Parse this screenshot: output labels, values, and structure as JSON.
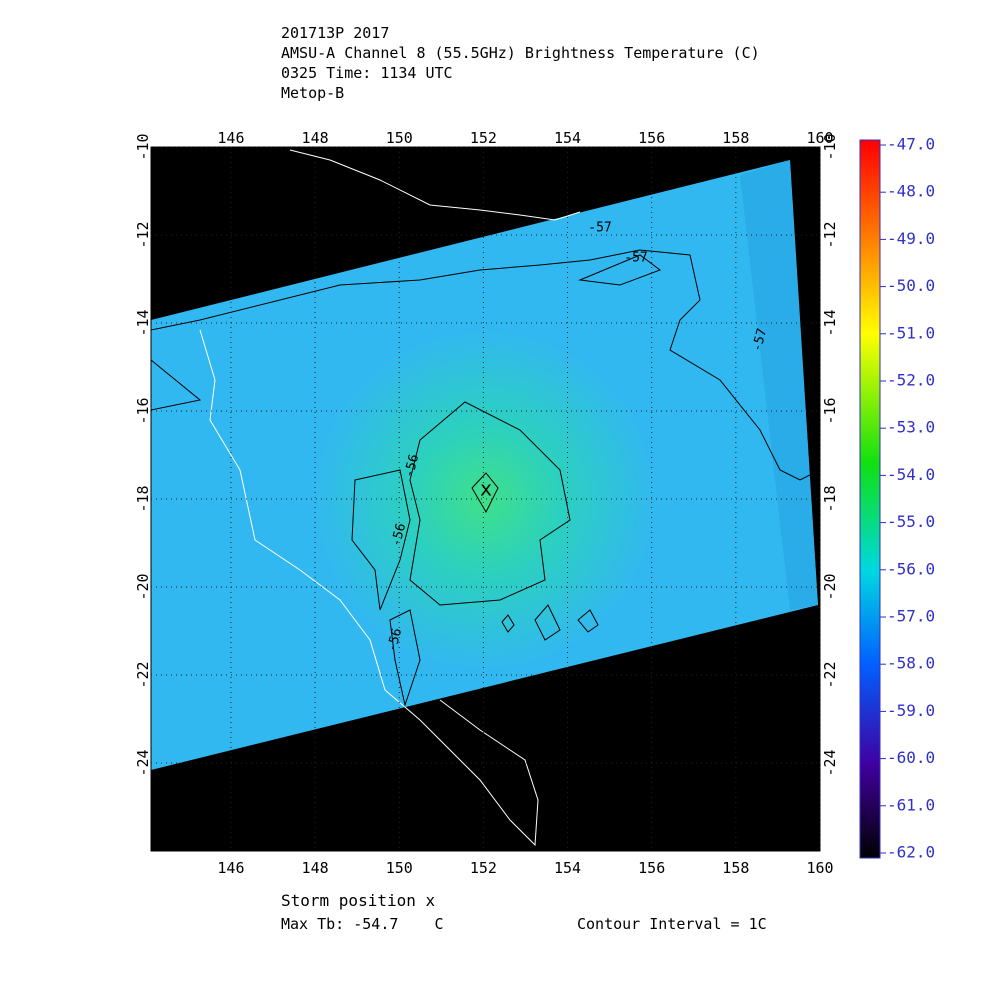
{
  "header": {
    "lines": [
      "201713P 2017",
      "AMSU-A Channel 8 (55.5GHz) Brightness Temperature (C)",
      "0325 Time: 1134 UTC",
      "Metop-B"
    ]
  },
  "map": {
    "lonlim": [
      144.1,
      160
    ],
    "latlim": [
      -26,
      -10
    ],
    "lon_ticks": [
      146,
      148,
      150,
      152,
      154,
      156,
      158,
      160
    ],
    "lat_ticks": [
      -10,
      -12,
      -14,
      -16,
      -18,
      -20,
      -22,
      -24
    ],
    "contour_labels": [
      "-57",
      "-57",
      "-57",
      "-56",
      "-56",
      "-56"
    ],
    "storm_marker": "x"
  },
  "colorbar": {
    "range": [
      -62,
      -47
    ],
    "ticks": [
      {
        "value": -47,
        "label": "-47.0"
      },
      {
        "value": -48,
        "label": "-48.0"
      },
      {
        "value": -49,
        "label": "-49.0"
      },
      {
        "value": -50,
        "label": "-50.0"
      },
      {
        "value": -51,
        "label": "-51.0"
      },
      {
        "value": -52,
        "label": "-52.0"
      },
      {
        "value": -53,
        "label": "-53.0"
      },
      {
        "value": -54,
        "label": "-54.0"
      },
      {
        "value": -55,
        "label": "-55.0"
      },
      {
        "value": -56,
        "label": "-56.0"
      },
      {
        "value": -57,
        "label": "-57.0"
      },
      {
        "value": -58,
        "label": "-58.0"
      },
      {
        "value": -59,
        "label": "-59.0"
      },
      {
        "value": -60,
        "label": "-60.0"
      },
      {
        "value": -61,
        "label": "-61.0"
      },
      {
        "value": -62,
        "label": "-62.0"
      }
    ]
  },
  "footer": {
    "storm_position": "Storm position x",
    "max_tb": "Max Tb: -54.7    C",
    "contour_interval": "Contour Interval = 1C"
  }
}
